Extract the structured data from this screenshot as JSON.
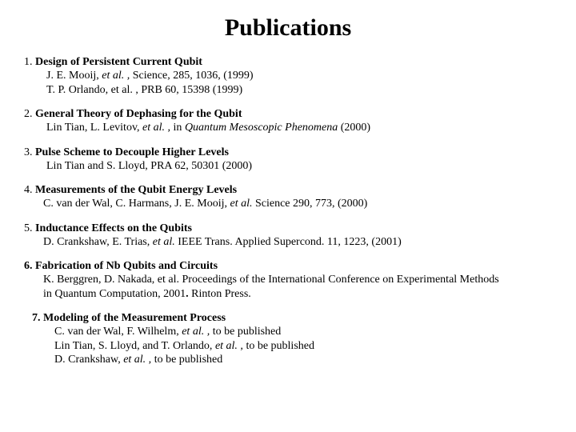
{
  "title": "Publications",
  "entries": [
    {
      "num": "1.",
      "heading": "Design of Persistent Current Qubit",
      "refs": [
        {
          "pre": "J. E. Mooij, ",
          "ital": "et al. ,",
          "post": " Science, 285, 1036, (1999)"
        },
        {
          "pre": "T. P. Orlando, et al. , PRB 60, 15398 (1999)",
          "ital": "",
          "post": ""
        }
      ]
    },
    {
      "num": "2.",
      "heading": "General Theory of Dephasing for the Qubit",
      "refs": [
        {
          "pre": "Lin Tian, L. Levitov, ",
          "ital": "et al. ,",
          "post": " in ",
          "ital2": "Quantum Mesoscopic Phenomena",
          "post2": "  (2000)"
        }
      ]
    },
    {
      "num": "3.",
      "heading": "Pulse Scheme to Decouple Higher Levels",
      "refs": [
        {
          "pre": "Lin Tian and S. Lloyd, PRA 62, 50301 (2000)",
          "ital": "",
          "post": ""
        }
      ]
    },
    {
      "num": "4.",
      "heading": "Measurements of the Qubit Energy Levels",
      "refs": [
        {
          "pre": "C. van der Wal, C. Harmans, J. E. Mooij, ",
          "ital": "et al.",
          "post": " Science 290, 773, (2000)"
        }
      ]
    },
    {
      "num": "5.",
      "heading": "Inductance Effects on the Qubits",
      "refs": [
        {
          "pre": "D. Crankshaw, E. Trias, ",
          "ital": "et al.",
          "post": " IEEE Trans. Applied Supercond. 11, 1223, (2001)"
        }
      ]
    },
    {
      "num": "6",
      "numBold": true,
      "dotBold": true,
      "heading": "Fabrication of Nb Qubits and Circuits",
      "refs": [
        {
          "pre": "K. Berggren, D. Nakada, et al.  Proceedings of the International Conference on Experimental Methods",
          "ital": "",
          "post": ""
        },
        {
          "pre": " in Quantum Computation, 2001",
          "ital": "",
          "post": "",
          "boldDotTail": ". ",
          "tail": "Rinton Press."
        }
      ]
    },
    {
      "num": "7.",
      "numBold": true,
      "heading": "Modeling of the Measurement Process",
      "refs": [
        {
          "pre": "C. van der Wal, F. Wilhelm, ",
          "ital": "et al. ,",
          "post": "  to be published"
        },
        {
          "pre": "Lin Tian, S. Lloyd, and T. Orlando, ",
          "ital": "et al. ,",
          "post": "  to be published"
        },
        {
          "pre": "D. Crankshaw, ",
          "ital": "et al. ,",
          "post": "  to be published"
        }
      ]
    }
  ],
  "style": {
    "background_color": "#ffffff",
    "text_color": "#000000",
    "font_family": "Times New Roman",
    "title_fontsize": 30,
    "body_fontsize": 14
  }
}
